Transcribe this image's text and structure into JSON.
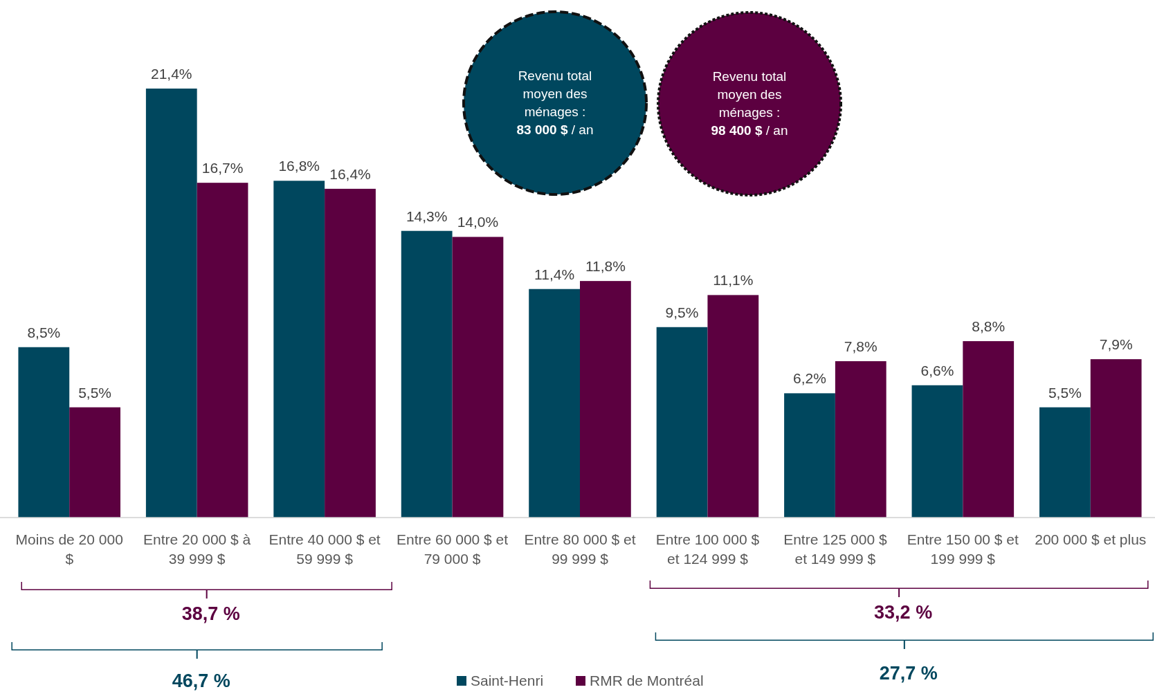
{
  "chart_data": {
    "type": "bar",
    "categories": [
      "Moins de 20 000 $",
      "Entre 20 000 $ à 39 999 $",
      "Entre 40 000 $ et 59 999 $",
      "Entre 60 000 $ et 79 000 $",
      "Entre 80 000 $ et 99 999 $",
      "Entre 100 000 $ et 124 999 $",
      "Entre 125 000 $ et 149 999 $",
      "Entre 150 00 $ et 199 999 $",
      "200 000 $ et plus"
    ],
    "series": [
      {
        "name": "Saint-Henri",
        "color": "#00475e",
        "values": [
          8.5,
          21.4,
          16.8,
          14.3,
          11.4,
          9.5,
          6.2,
          6.6,
          5.5
        ],
        "value_labels": [
          "8,5%",
          "21,4%",
          "16,8%",
          "14,3%",
          "11,4%",
          "9,5%",
          "6,2%",
          "6,6%",
          "5,5%"
        ]
      },
      {
        "name": "RMR de Montréal",
        "color": "#5c0040",
        "values": [
          5.5,
          16.7,
          16.4,
          14.0,
          11.8,
          11.1,
          7.8,
          8.8,
          7.9
        ],
        "value_labels": [
          "5,5%",
          "16,7%",
          "16,4%",
          "14,0%",
          "11,8%",
          "11,1%",
          "7,8%",
          "8,8%",
          "7,9%"
        ]
      }
    ],
    "annotations": [
      "Revenu total moyen des ménages : 83 000 $ / an",
      "Revenu total moyen des ménages : 98 400 $ / an",
      "38,7 %",
      "46,7 %",
      "33,2 %",
      "27,7 %"
    ],
    "legend": "bottom",
    "grid": false
  }
}
